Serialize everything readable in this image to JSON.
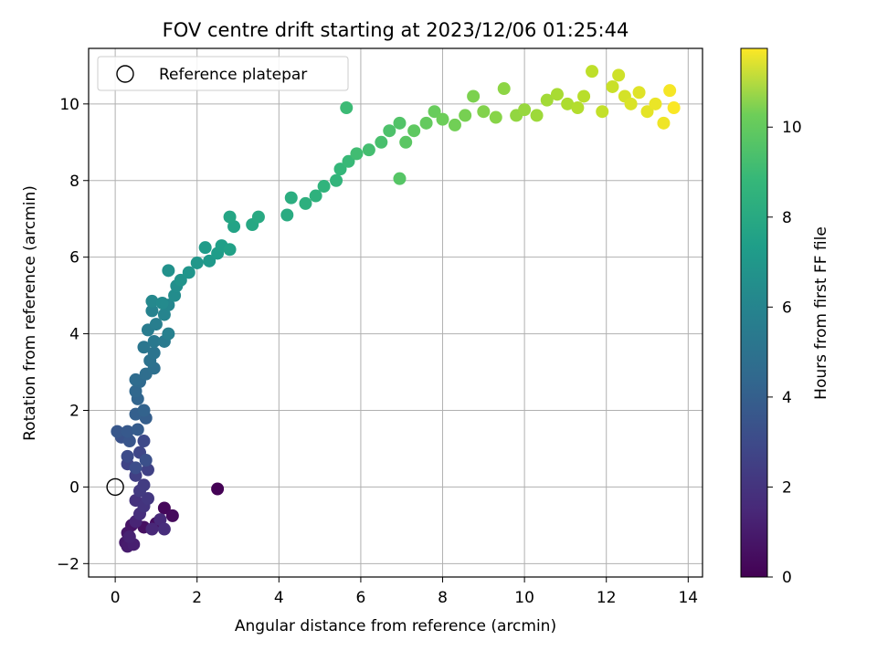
{
  "chart_data": {
    "type": "scatter",
    "title": "FOV centre drift starting at 2023/12/06 01:25:44",
    "xlabel": "Angular distance from reference (arcmin)",
    "ylabel": "Rotation from reference (arcmin)",
    "colorbar_label": "Hours from first FF file",
    "colormap": "viridis",
    "xlim": [
      -0.65,
      14.35
    ],
    "ylim": [
      -2.35,
      11.45
    ],
    "x_ticks": [
      0,
      2,
      4,
      6,
      8,
      10,
      12,
      14
    ],
    "y_ticks": [
      -2,
      0,
      2,
      4,
      6,
      8,
      10
    ],
    "colorbar_range": [
      0,
      11.75
    ],
    "colorbar_ticks": [
      0,
      2,
      4,
      6,
      8,
      10
    ],
    "grid": true,
    "legend": {
      "position": "top-left",
      "entries": [
        "Reference platepar"
      ]
    },
    "reference_point": {
      "x": 0,
      "y": 0
    },
    "series": [
      {
        "points": [
          [
            2.5,
            -0.05,
            0.05
          ],
          [
            1.2,
            -0.55,
            0.2
          ],
          [
            1.4,
            -0.75,
            0.3
          ],
          [
            1.0,
            -0.95,
            0.4
          ],
          [
            0.7,
            -1.05,
            0.5
          ],
          [
            0.4,
            -1.0,
            0.6
          ],
          [
            0.3,
            -1.2,
            0.7
          ],
          [
            0.25,
            -1.45,
            0.8
          ],
          [
            0.3,
            -1.55,
            0.9
          ],
          [
            0.45,
            -1.5,
            1.0
          ],
          [
            0.35,
            -1.3,
            1.1
          ],
          [
            0.5,
            -0.9,
            1.2
          ],
          [
            0.9,
            -1.1,
            1.3
          ],
          [
            1.1,
            -0.85,
            1.4
          ],
          [
            1.2,
            -1.1,
            1.5
          ],
          [
            0.6,
            -0.7,
            1.6
          ],
          [
            0.5,
            -0.35,
            1.7
          ],
          [
            0.7,
            -0.5,
            1.8
          ],
          [
            0.8,
            -0.3,
            1.9
          ],
          [
            0.6,
            -0.1,
            2.0
          ],
          [
            0.7,
            0.05,
            2.1
          ],
          [
            0.5,
            0.3,
            2.2
          ],
          [
            0.8,
            0.45,
            2.3
          ],
          [
            0.3,
            0.6,
            2.4
          ],
          [
            0.6,
            0.9,
            2.5
          ],
          [
            0.7,
            1.2,
            2.6
          ],
          [
            0.3,
            0.8,
            2.7
          ],
          [
            0.5,
            0.5,
            2.8
          ],
          [
            0.75,
            0.7,
            2.9
          ],
          [
            0.15,
            1.3,
            3.0
          ],
          [
            0.35,
            1.2,
            3.1
          ],
          [
            0.05,
            1.45,
            3.2
          ],
          [
            0.3,
            1.45,
            3.3
          ],
          [
            0.55,
            1.5,
            3.4
          ],
          [
            0.75,
            1.8,
            3.5
          ],
          [
            0.5,
            1.9,
            3.6
          ],
          [
            0.7,
            2.0,
            3.7
          ],
          [
            0.55,
            2.3,
            3.8
          ],
          [
            0.5,
            2.5,
            3.9
          ],
          [
            0.6,
            2.75,
            4.0
          ],
          [
            0.5,
            2.8,
            4.1
          ],
          [
            0.75,
            2.95,
            4.2
          ],
          [
            0.95,
            3.1,
            4.3
          ],
          [
            0.85,
            3.3,
            4.4
          ],
          [
            0.95,
            3.5,
            4.5
          ],
          [
            0.7,
            3.65,
            4.6
          ],
          [
            0.95,
            3.8,
            4.7
          ],
          [
            1.2,
            3.8,
            4.8
          ],
          [
            0.8,
            4.1,
            4.9
          ],
          [
            1.0,
            4.25,
            5.0
          ],
          [
            1.3,
            4.0,
            5.1
          ],
          [
            0.9,
            4.6,
            5.2
          ],
          [
            1.2,
            4.5,
            5.3
          ],
          [
            1.3,
            4.75,
            5.4
          ],
          [
            0.9,
            4.85,
            5.5
          ],
          [
            1.15,
            4.8,
            5.6
          ],
          [
            1.45,
            5.0,
            5.7
          ],
          [
            1.5,
            5.25,
            5.8
          ],
          [
            1.3,
            5.65,
            5.9
          ],
          [
            1.6,
            5.4,
            6.0
          ],
          [
            1.8,
            5.6,
            6.1
          ],
          [
            2.0,
            5.85,
            6.2
          ],
          [
            2.3,
            5.9,
            6.3
          ],
          [
            2.2,
            6.25,
            6.4
          ],
          [
            2.5,
            6.1,
            6.5
          ],
          [
            2.6,
            6.3,
            6.6
          ],
          [
            2.8,
            6.2,
            6.7
          ],
          [
            2.9,
            6.8,
            6.8
          ],
          [
            2.8,
            7.05,
            6.9
          ],
          [
            3.35,
            6.85,
            7.0
          ],
          [
            3.5,
            7.05,
            7.1
          ],
          [
            4.2,
            7.1,
            7.2
          ],
          [
            4.3,
            7.55,
            7.3
          ],
          [
            4.65,
            7.4,
            7.4
          ],
          [
            4.9,
            7.6,
            7.5
          ],
          [
            5.1,
            7.85,
            7.6
          ],
          [
            5.4,
            8.0,
            7.7
          ],
          [
            5.5,
            8.3,
            7.8
          ],
          [
            5.7,
            8.5,
            7.9
          ],
          [
            5.65,
            9.9,
            8.0
          ],
          [
            5.9,
            8.7,
            8.1
          ],
          [
            6.2,
            8.8,
            8.2
          ],
          [
            6.5,
            9.0,
            8.3
          ],
          [
            6.7,
            9.3,
            8.4
          ],
          [
            6.95,
            9.5,
            8.5
          ],
          [
            6.95,
            8.05,
            8.6
          ],
          [
            7.1,
            9.0,
            8.7
          ],
          [
            7.3,
            9.3,
            8.8
          ],
          [
            7.6,
            9.5,
            8.9
          ],
          [
            7.8,
            9.8,
            9.0
          ],
          [
            8.0,
            9.6,
            9.1
          ],
          [
            8.3,
            9.45,
            9.2
          ],
          [
            8.55,
            9.7,
            9.3
          ],
          [
            8.75,
            10.2,
            9.4
          ],
          [
            9.0,
            9.8,
            9.5
          ],
          [
            9.3,
            9.65,
            9.6
          ],
          [
            9.5,
            10.4,
            9.7
          ],
          [
            9.8,
            9.7,
            9.8
          ],
          [
            10.0,
            9.85,
            9.9
          ],
          [
            10.3,
            9.7,
            10.0
          ],
          [
            10.55,
            10.1,
            10.1
          ],
          [
            10.8,
            10.25,
            10.2
          ],
          [
            11.05,
            10.0,
            10.3
          ],
          [
            11.3,
            9.9,
            10.4
          ],
          [
            11.45,
            10.2,
            10.5
          ],
          [
            11.65,
            10.85,
            10.6
          ],
          [
            11.9,
            9.8,
            10.7
          ],
          [
            12.15,
            10.45,
            10.8
          ],
          [
            12.3,
            10.75,
            10.9
          ],
          [
            12.45,
            10.2,
            11.0
          ],
          [
            12.6,
            10.0,
            11.1
          ],
          [
            12.8,
            10.3,
            11.2
          ],
          [
            13.0,
            9.8,
            11.3
          ],
          [
            13.2,
            10.0,
            11.4
          ],
          [
            13.4,
            9.5,
            11.5
          ],
          [
            13.55,
            10.35,
            11.6
          ],
          [
            13.65,
            9.9,
            11.7
          ]
        ]
      }
    ]
  }
}
